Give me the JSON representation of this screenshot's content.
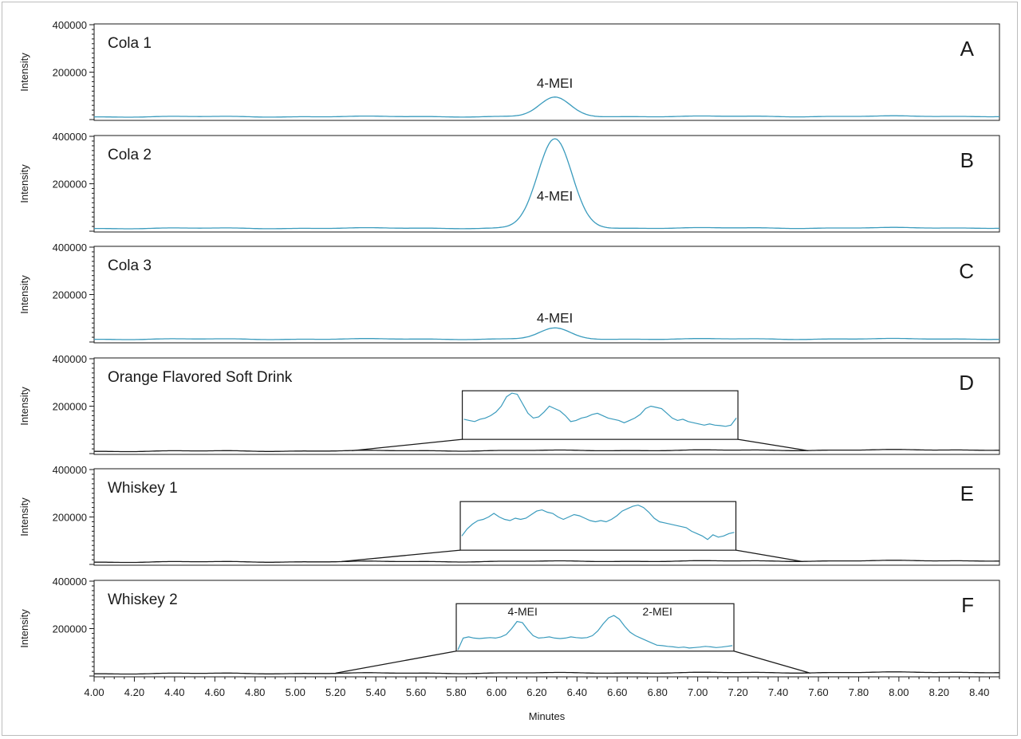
{
  "chart_data": {
    "type": "line",
    "xlabel": "Minutes",
    "ylabel": "Intensity",
    "xlim": [
      4.0,
      8.5
    ],
    "ylim": [
      0,
      400000
    ],
    "x_ticks": [
      "4.00",
      "4.20",
      "4.40",
      "4.60",
      "4.80",
      "5.00",
      "5.20",
      "5.40",
      "5.60",
      "5.80",
      "6.00",
      "6.20",
      "6.40",
      "6.60",
      "6.80",
      "7.00",
      "7.20",
      "7.40",
      "7.60",
      "7.80",
      "8.00",
      "8.20",
      "8.40"
    ],
    "y_ticks": [
      "400000",
      "200000"
    ],
    "line_color": "#3a9bbd",
    "baseline_color": "#1a1a1a",
    "panels": [
      {
        "title": "Cola 1",
        "letter": "A",
        "line_color": "#3a9bbd",
        "baseline_start": 12000,
        "baseline_end": 14000,
        "peak": {
          "x": 6.29,
          "height": 80000,
          "width": 0.075
        },
        "peak_label": {
          "text": "4-MEI",
          "x": 6.29,
          "y": 135000
        },
        "inset": null
      },
      {
        "title": "Cola 2",
        "letter": "B",
        "line_color": "#3a9bbd",
        "baseline_start": 12000,
        "baseline_end": 14000,
        "peak": {
          "x": 6.29,
          "height": 375000,
          "width": 0.085
        },
        "peak_label": {
          "text": "4-MEI",
          "x": 6.29,
          "y": 130000
        },
        "inset": null
      },
      {
        "title": "Cola 3",
        "letter": "C",
        "line_color": "#3a9bbd",
        "baseline_start": 12000,
        "baseline_end": 13000,
        "peak": {
          "x": 6.29,
          "height": 45000,
          "width": 0.075
        },
        "peak_label": {
          "text": "4-MEI",
          "x": 6.29,
          "y": 82000
        },
        "inset": null
      },
      {
        "title": "Orange Flavored Soft Drink",
        "letter": "D",
        "line_color": "#1a1a1a",
        "baseline_start": 10000,
        "baseline_end": 16000,
        "peak": null,
        "peak_label": null,
        "inset": {
          "zoom_from": [
            5.28,
            7.55
          ],
          "box_x": [
            5.83,
            7.2
          ],
          "box_y": [
            60000,
            265000
          ],
          "trace_y": [
            145000,
            140000,
            135000,
            145000,
            150000,
            160000,
            175000,
            200000,
            240000,
            255000,
            250000,
            210000,
            170000,
            150000,
            155000,
            175000,
            200000,
            190000,
            180000,
            160000,
            135000,
            140000,
            150000,
            155000,
            165000,
            170000,
            160000,
            150000,
            145000,
            140000,
            130000,
            140000,
            150000,
            165000,
            190000,
            200000,
            195000,
            190000,
            170000,
            150000,
            140000,
            145000,
            135000,
            130000,
            125000,
            120000,
            125000,
            120000,
            118000,
            115000,
            120000,
            150000
          ],
          "labels": []
        }
      },
      {
        "title": "Whiskey 1",
        "letter": "E",
        "line_color": "#1a1a1a",
        "baseline_start": 10000,
        "baseline_end": 16000,
        "peak": null,
        "peak_label": null,
        "inset": {
          "zoom_from": [
            5.23,
            7.52
          ],
          "box_x": [
            5.82,
            7.19
          ],
          "box_y": [
            60000,
            265000
          ],
          "trace_y": [
            120000,
            150000,
            170000,
            185000,
            190000,
            200000,
            215000,
            200000,
            190000,
            185000,
            195000,
            190000,
            195000,
            210000,
            225000,
            230000,
            220000,
            215000,
            200000,
            190000,
            200000,
            210000,
            205000,
            195000,
            185000,
            180000,
            185000,
            180000,
            190000,
            205000,
            225000,
            235000,
            245000,
            250000,
            240000,
            220000,
            195000,
            180000,
            175000,
            170000,
            165000,
            160000,
            155000,
            140000,
            130000,
            120000,
            105000,
            125000,
            115000,
            120000,
            130000,
            135000
          ],
          "labels": []
        }
      },
      {
        "title": "Whiskey 2",
        "letter": "F",
        "line_color": "#1a1a1a",
        "baseline_start": 10000,
        "baseline_end": 16000,
        "peak": null,
        "peak_label": null,
        "inset": {
          "zoom_from": [
            5.2,
            7.56
          ],
          "box_x": [
            5.8,
            7.18
          ],
          "box_y": [
            105000,
            305000
          ],
          "trace_y": [
            110000,
            160000,
            165000,
            160000,
            158000,
            160000,
            162000,
            160000,
            165000,
            175000,
            200000,
            230000,
            225000,
            195000,
            170000,
            160000,
            162000,
            165000,
            160000,
            158000,
            160000,
            165000,
            162000,
            160000,
            162000,
            170000,
            190000,
            220000,
            245000,
            255000,
            240000,
            210000,
            185000,
            170000,
            160000,
            150000,
            140000,
            130000,
            128000,
            125000,
            123000,
            120000,
            122000,
            118000,
            120000,
            122000,
            125000,
            123000,
            120000,
            122000,
            125000,
            128000
          ],
          "labels": [
            {
              "text": "4-MEI",
              "x": 6.13,
              "y": 255000
            },
            {
              "text": "2-MEI",
              "x": 6.8,
              "y": 255000
            }
          ]
        }
      }
    ]
  }
}
